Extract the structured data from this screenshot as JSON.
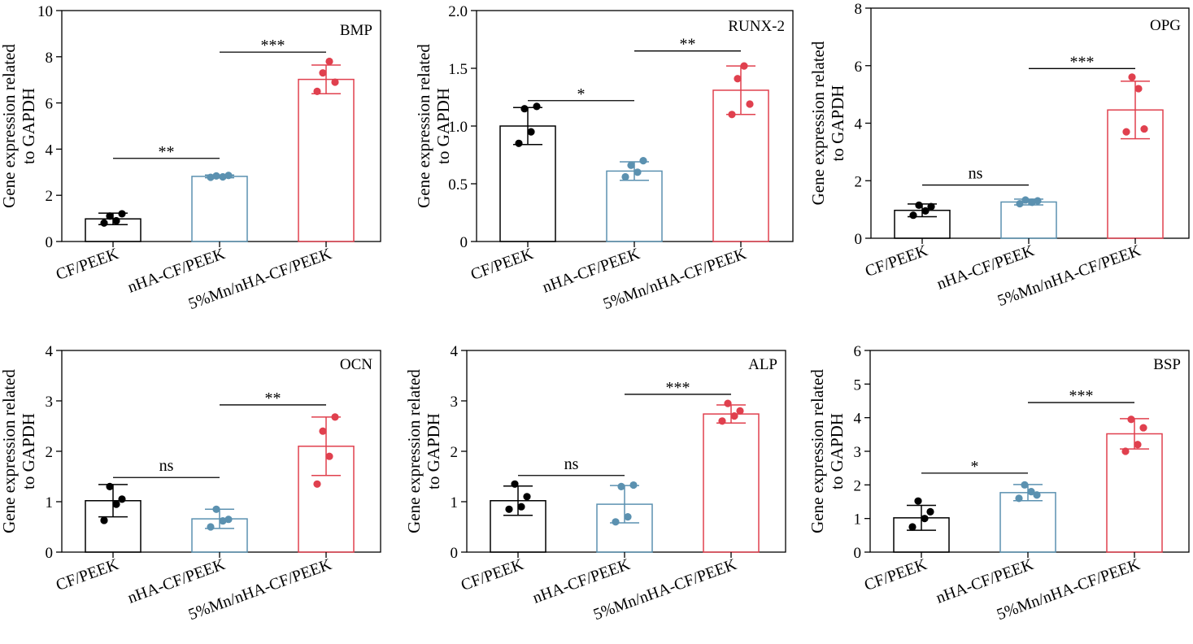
{
  "colors": {
    "CF/PEEK": "#000000",
    "nHA-CF/PEEK": "#5b91b0",
    "5%Mn/nHA-CF/PEEK": "#e0404e"
  },
  "chart_data": [
    {
      "type": "bar",
      "title": "BMP",
      "ylabel_line1": "Gene expression related",
      "ylabel_line2": "to GAPDH",
      "categories": [
        "CF/PEEK",
        "nHA-CF/PEEK",
        "5%Mn/nHA-CF/PEEK"
      ],
      "values": [
        0.98,
        2.82,
        7.02
      ],
      "errors": [
        0.25,
        0.06,
        0.62
      ],
      "points": [
        [
          0.8,
          1.1,
          0.9,
          1.2
        ],
        [
          2.78,
          2.84,
          2.8,
          2.86
        ],
        [
          6.5,
          7.3,
          7.8,
          6.9
        ]
      ],
      "ylim": [
        0,
        10
      ],
      "yticks": [
        "0",
        "2",
        "4",
        "6",
        "8",
        "10"
      ],
      "yticks_values": [
        0,
        2,
        4,
        6,
        8,
        10
      ],
      "significance": [
        {
          "from": 0,
          "to": 1,
          "label": "**",
          "y": 3.6
        },
        {
          "from": 1,
          "to": 2,
          "label": "***",
          "y": 8.2
        }
      ]
    },
    {
      "type": "bar",
      "title": "RUNX-2",
      "ylabel_line1": "Gene expression related",
      "ylabel_line2": "to GAPDH",
      "categories": [
        "CF/PEEK",
        "nHA-CF/PEEK",
        "5%Mn/nHA-CF/PEEK"
      ],
      "values": [
        1.0,
        0.61,
        1.31
      ],
      "errors": [
        0.16,
        0.08,
        0.21
      ],
      "points": [
        [
          0.85,
          1.15,
          0.95,
          1.17
        ],
        [
          0.56,
          0.66,
          0.6,
          0.7
        ],
        [
          1.1,
          1.41,
          1.52,
          1.19
        ]
      ],
      "ylim": [
        0,
        2.0
      ],
      "yticks": [
        "0",
        "0.5",
        "1.0",
        "1.5",
        "2.0"
      ],
      "yticks_values": [
        0,
        0.5,
        1.0,
        1.5,
        2.0
      ],
      "significance": [
        {
          "from": 0,
          "to": 1,
          "label": "*",
          "y": 1.22
        },
        {
          "from": 1,
          "to": 2,
          "label": "**",
          "y": 1.65
        }
      ]
    },
    {
      "type": "bar",
      "title": "OPG",
      "ylabel_line1": "Gene expression related",
      "ylabel_line2": "to GAPDH",
      "categories": [
        "CF/PEEK",
        "nHA-CF/PEEK",
        "5%Mn/nHA-CF/PEEK"
      ],
      "values": [
        0.97,
        1.26,
        4.46
      ],
      "errors": [
        0.22,
        0.1,
        1.0
      ],
      "points": [
        [
          0.8,
          1.15,
          0.95,
          1.1
        ],
        [
          1.2,
          1.33,
          1.25,
          1.3
        ],
        [
          3.7,
          5.6,
          5.2,
          3.8
        ]
      ],
      "ylim": [
        0,
        8
      ],
      "yticks": [
        "0",
        "2",
        "4",
        "6",
        "8"
      ],
      "yticks_values": [
        0,
        2,
        4,
        6,
        8
      ],
      "significance": [
        {
          "from": 0,
          "to": 1,
          "label": "ns",
          "y": 1.85
        },
        {
          "from": 1,
          "to": 2,
          "label": "***",
          "y": 5.9
        }
      ]
    },
    {
      "type": "bar",
      "title": "OCN",
      "ylabel_line1": "Gene expression related",
      "ylabel_line2": "to GAPDH",
      "categories": [
        "CF/PEEK",
        "nHA-CF/PEEK",
        "5%Mn/nHA-CF/PEEK"
      ],
      "values": [
        1.02,
        0.66,
        2.1
      ],
      "errors": [
        0.32,
        0.19,
        0.58
      ],
      "points": [
        [
          0.63,
          1.3,
          0.95,
          1.05
        ],
        [
          0.5,
          0.85,
          0.62,
          0.65
        ],
        [
          1.35,
          2.4,
          1.9,
          2.68
        ]
      ],
      "ylim": [
        0,
        4
      ],
      "yticks": [
        "0",
        "1",
        "2",
        "3",
        "4"
      ],
      "yticks_values": [
        0,
        1,
        2,
        3,
        4
      ],
      "significance": [
        {
          "from": 0,
          "to": 1,
          "label": "ns",
          "y": 1.48
        },
        {
          "from": 1,
          "to": 2,
          "label": "**",
          "y": 2.92
        }
      ]
    },
    {
      "type": "bar",
      "title": "ALP",
      "ylabel_line1": "Gene expression related",
      "ylabel_line2": "to GAPDH",
      "categories": [
        "CF/PEEK",
        "nHA-CF/PEEK",
        "5%Mn/nHA-CF/PEEK"
      ],
      "values": [
        1.02,
        0.95,
        2.74
      ],
      "errors": [
        0.29,
        0.37,
        0.18
      ],
      "points": [
        [
          0.85,
          1.35,
          0.9,
          1.1
        ],
        [
          0.6,
          1.3,
          0.7,
          1.33
        ],
        [
          2.6,
          2.95,
          2.7,
          2.8
        ]
      ],
      "ylim": [
        0,
        4
      ],
      "yticks": [
        "0",
        "1",
        "2",
        "3",
        "4"
      ],
      "yticks_values": [
        0,
        1,
        2,
        3,
        4
      ],
      "significance": [
        {
          "from": 0,
          "to": 1,
          "label": "ns",
          "y": 1.52
        },
        {
          "from": 1,
          "to": 2,
          "label": "***",
          "y": 3.13
        }
      ]
    },
    {
      "type": "bar",
      "title": "BSP",
      "ylabel_line1": "Gene expression related",
      "ylabel_line2": "to GAPDH",
      "categories": [
        "CF/PEEK",
        "nHA-CF/PEEK",
        "5%Mn/nHA-CF/PEEK"
      ],
      "values": [
        1.02,
        1.77,
        3.52
      ],
      "errors": [
        0.37,
        0.24,
        0.45
      ],
      "points": [
        [
          0.75,
          1.52,
          1.0,
          1.2
        ],
        [
          1.6,
          2.0,
          1.8,
          1.7
        ],
        [
          3.0,
          3.95,
          3.2,
          3.7
        ]
      ],
      "ylim": [
        0,
        6
      ],
      "yticks": [
        "0",
        "1",
        "2",
        "3",
        "4",
        "5",
        "6"
      ],
      "yticks_values": [
        0,
        1,
        2,
        3,
        4,
        5,
        6
      ],
      "significance": [
        {
          "from": 0,
          "to": 1,
          "label": "*",
          "y": 2.35
        },
        {
          "from": 1,
          "to": 2,
          "label": "***",
          "y": 4.45
        }
      ]
    }
  ]
}
